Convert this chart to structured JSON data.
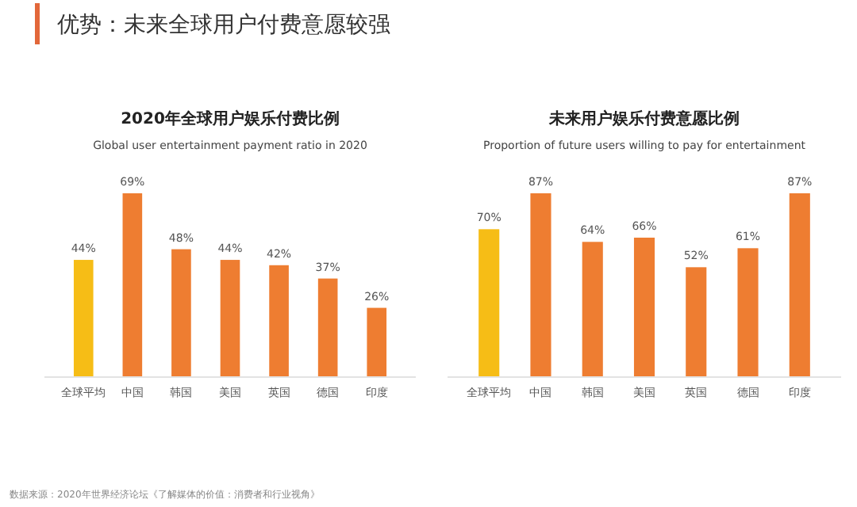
{
  "chart_data": [
    {
      "type": "bar",
      "title": "2020年全球用户娱乐付费比例",
      "subtitle": "Global user entertainment payment ratio in 2020",
      "categories": [
        "全球平均",
        "中国",
        "韩国",
        "美国",
        "英国",
        "德国",
        "印度"
      ],
      "values": [
        44,
        69,
        48,
        44,
        42,
        37,
        26
      ],
      "value_labels": [
        "44%",
        "69%",
        "48%",
        "44%",
        "42%",
        "37%",
        "26%"
      ],
      "colors": [
        "#f6bd16",
        "#ee7d31",
        "#ee7d31",
        "#ee7d31",
        "#ee7d31",
        "#ee7d31",
        "#ee7d31"
      ],
      "annotations": [
        "优势：未来全球用户付费意愿较强"
      ]
    },
    {
      "type": "bar",
      "title": "未来用户娱乐付费意愿比例",
      "subtitle": "Proportion of future users willing to pay for entertainment",
      "categories": [
        "全球平均",
        "中国",
        "韩国",
        "美国",
        "英国",
        "德国",
        "印度"
      ],
      "values": [
        70,
        87,
        64,
        66,
        52,
        61,
        87
      ],
      "value_labels": [
        "70%",
        "87%",
        "64%",
        "66%",
        "52%",
        "61%",
        "87%"
      ],
      "colors": [
        "#f6bd16",
        "#ee7d31",
        "#ee7d31",
        "#ee7d31",
        "#ee7d31",
        "#ee7d31",
        "#ee7d31"
      ],
      "annotations": [
        "数据来源：2020年世界经济论坛《了解媒体的价值：消费者和行业视角》"
      ]
    }
  ]
}
